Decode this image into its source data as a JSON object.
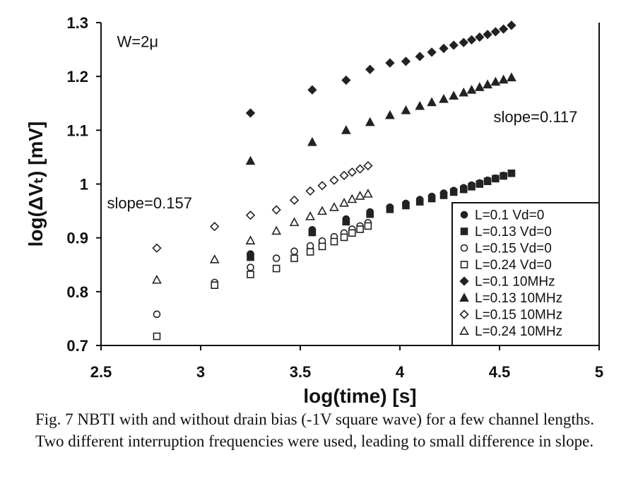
{
  "chart_data": {
    "type": "scatter",
    "xlabel": "log(time) [s]",
    "ylabel": "log(ΔVₜ) [mV]",
    "xlim": [
      2.5,
      5
    ],
    "ylim": [
      0.7,
      1.3
    ],
    "xticks": [
      2.5,
      3,
      3.5,
      4,
      4.5,
      5
    ],
    "xtick_labels": [
      "2.5",
      "3",
      "3.5",
      "4",
      "4.5",
      "5"
    ],
    "yticks": [
      0.7,
      0.8,
      0.9,
      1.0,
      1.1,
      1.2,
      1.3
    ],
    "ytick_labels": [
      "0.7",
      "0.8",
      "0.9",
      "1",
      "1.1",
      "1.2",
      "1.3"
    ],
    "grid": false,
    "legend_position": "bottom-right",
    "annotations": [
      {
        "text": "W=2μ",
        "x": 2.58,
        "y": 1.255
      },
      {
        "text": "slope=0.157",
        "x": 2.53,
        "y": 0.955
      },
      {
        "text": "slope=0.117",
        "x": 4.47,
        "y": 1.115
      }
    ],
    "series": [
      {
        "name": "L=0.1 Vd=0",
        "marker": "circle-filled",
        "x": [
          3.25,
          3.56,
          3.73,
          3.85,
          3.95,
          4.03,
          4.1,
          4.16,
          4.22,
          4.27,
          4.32,
          4.36,
          4.4,
          4.44,
          4.48,
          4.52,
          4.56
        ],
        "y": [
          0.87,
          0.915,
          0.935,
          0.948,
          0.957,
          0.964,
          0.971,
          0.977,
          0.983,
          0.988,
          0.993,
          0.998,
          1.002,
          1.007,
          1.011,
          1.016,
          1.02
        ]
      },
      {
        "name": "L=0.13 Vd=0",
        "marker": "square-filled",
        "x": [
          3.25,
          3.56,
          3.73,
          3.85,
          3.95,
          4.03,
          4.1,
          4.16,
          4.22,
          4.27,
          4.32,
          4.36,
          4.4,
          4.44,
          4.48,
          4.52,
          4.56
        ],
        "y": [
          0.864,
          0.91,
          0.93,
          0.944,
          0.953,
          0.96,
          0.967,
          0.973,
          0.979,
          0.985,
          0.99,
          0.995,
          1.0,
          1.005,
          1.01,
          1.015,
          1.02
        ]
      },
      {
        "name": "L=0.15 Vd=0",
        "marker": "circle-open",
        "x": [
          2.78,
          3.07,
          3.25,
          3.38,
          3.47,
          3.55,
          3.61,
          3.67,
          3.72,
          3.76,
          3.8,
          3.84
        ],
        "y": [
          0.758,
          0.817,
          0.845,
          0.862,
          0.875,
          0.885,
          0.894,
          0.902,
          0.909,
          0.916,
          0.922,
          0.928
        ]
      },
      {
        "name": "L=0.24 Vd=0",
        "marker": "square-open",
        "x": [
          2.78,
          3.07,
          3.25,
          3.38,
          3.47,
          3.55,
          3.61,
          3.67,
          3.72,
          3.76,
          3.8,
          3.84
        ],
        "y": [
          0.717,
          0.812,
          0.832,
          0.843,
          0.862,
          0.874,
          0.884,
          0.893,
          0.901,
          0.909,
          0.916,
          0.922
        ]
      },
      {
        "name": "L=0.1 10MHz",
        "marker": "diamond-filled",
        "x": [
          3.25,
          3.56,
          3.73,
          3.85,
          3.95,
          4.03,
          4.1,
          4.16,
          4.22,
          4.27,
          4.32,
          4.36,
          4.4,
          4.44,
          4.48,
          4.52,
          4.56
        ],
        "y": [
          1.132,
          1.175,
          1.193,
          1.213,
          1.225,
          1.228,
          1.237,
          1.245,
          1.252,
          1.258,
          1.263,
          1.268,
          1.273,
          1.278,
          1.283,
          1.288,
          1.295
        ]
      },
      {
        "name": "L=0.13 10MHz",
        "marker": "triangle-filled",
        "x": [
          3.25,
          3.56,
          3.73,
          3.85,
          3.95,
          4.03,
          4.1,
          4.16,
          4.22,
          4.27,
          4.32,
          4.36,
          4.4,
          4.44,
          4.48,
          4.52,
          4.56
        ],
        "y": [
          1.043,
          1.078,
          1.1,
          1.115,
          1.128,
          1.137,
          1.145,
          1.152,
          1.158,
          1.164,
          1.17,
          1.175,
          1.18,
          1.185,
          1.19,
          1.194,
          1.198
        ]
      },
      {
        "name": "L=0.15 10MHz",
        "marker": "diamond-open",
        "x": [
          2.78,
          3.07,
          3.25,
          3.38,
          3.47,
          3.55,
          3.61,
          3.67,
          3.72,
          3.76,
          3.8,
          3.84
        ],
        "y": [
          0.881,
          0.921,
          0.942,
          0.952,
          0.97,
          0.987,
          0.997,
          1.007,
          1.016,
          1.022,
          1.028,
          1.034
        ]
      },
      {
        "name": "L=0.24 10MHz",
        "marker": "triangle-open",
        "x": [
          2.78,
          3.07,
          3.25,
          3.38,
          3.47,
          3.55,
          3.61,
          3.67,
          3.72,
          3.76,
          3.8,
          3.84
        ],
        "y": [
          0.822,
          0.86,
          0.895,
          0.913,
          0.929,
          0.94,
          0.95,
          0.957,
          0.965,
          0.972,
          0.978,
          0.982
        ]
      }
    ]
  },
  "caption": "Fig. 7 NBTI with and without drain bias (-1V square wave) for a few channel lengths. Two different interruption frequencies were used, leading to small difference in slope."
}
